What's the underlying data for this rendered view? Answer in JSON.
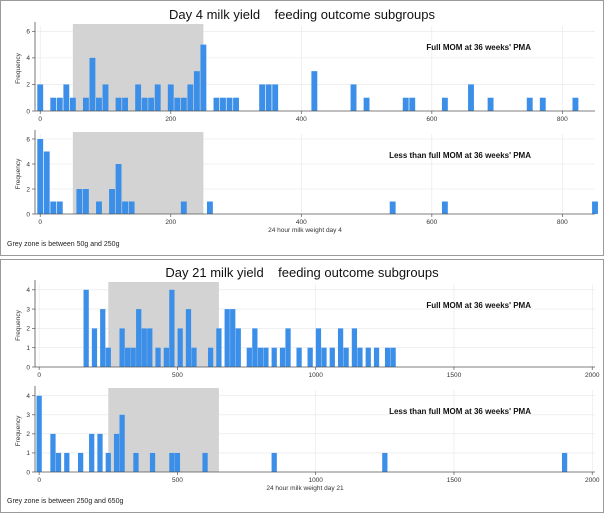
{
  "panels": [
    {
      "title": "Day 4 milk yield    feeding outcome subgroups",
      "note": "Grey zone is between 50g and 250g",
      "xlabel": "24  hour milk weight day 4"
    },
    {
      "title": "Day 21 milk yield    feeding outcome subgroups",
      "note": "Grey zone is between 250g and 650g",
      "xlabel": "24  hour milk weight day 21"
    }
  ],
  "colors": {
    "bar": "#3b8fe8",
    "grey_zone": "#d3d3d3",
    "axis": "#555555",
    "grid": "#e6e6e6"
  },
  "chart_data": [
    {
      "type": "bar",
      "title": "Full MOM at 36 weeks' PMA",
      "ylabel": "Frequency",
      "xlim": [
        -8,
        850
      ],
      "ylim": [
        0,
        6.4
      ],
      "xticks": [
        0,
        200,
        400,
        600,
        800
      ],
      "yticks": [
        0,
        2,
        4,
        6
      ],
      "bin_width": 9,
      "grey_zone": [
        50,
        250
      ],
      "bins": [
        [
          0,
          2
        ],
        [
          20,
          1
        ],
        [
          30,
          1
        ],
        [
          40,
          2
        ],
        [
          50,
          1
        ],
        [
          70,
          1
        ],
        [
          80,
          4
        ],
        [
          90,
          1
        ],
        [
          100,
          2
        ],
        [
          120,
          1
        ],
        [
          130,
          1
        ],
        [
          150,
          2
        ],
        [
          160,
          1
        ],
        [
          170,
          1
        ],
        [
          180,
          2
        ],
        [
          200,
          2
        ],
        [
          210,
          1
        ],
        [
          220,
          1
        ],
        [
          230,
          2
        ],
        [
          240,
          3
        ],
        [
          250,
          5
        ],
        [
          270,
          1
        ],
        [
          280,
          1
        ],
        [
          290,
          1
        ],
        [
          300,
          1
        ],
        [
          340,
          2
        ],
        [
          350,
          2
        ],
        [
          360,
          2
        ],
        [
          420,
          3
        ],
        [
          480,
          2
        ],
        [
          500,
          1
        ],
        [
          560,
          1
        ],
        [
          570,
          1
        ],
        [
          620,
          1
        ],
        [
          660,
          2
        ],
        [
          690,
          1
        ],
        [
          750,
          1
        ],
        [
          770,
          1
        ],
        [
          820,
          1
        ]
      ]
    },
    {
      "type": "bar",
      "title": "Less than full MOM at 36 weeks' PMA",
      "ylabel": "Frequency",
      "xlim": [
        -8,
        850
      ],
      "ylim": [
        0,
        6.4
      ],
      "xticks": [
        0,
        200,
        400,
        600,
        800
      ],
      "yticks": [
        0,
        2,
        4,
        6
      ],
      "bin_width": 9,
      "grey_zone": [
        50,
        250
      ],
      "bins": [
        [
          0,
          6
        ],
        [
          10,
          5
        ],
        [
          20,
          1
        ],
        [
          30,
          1
        ],
        [
          60,
          2
        ],
        [
          70,
          2
        ],
        [
          90,
          1
        ],
        [
          110,
          2
        ],
        [
          120,
          4
        ],
        [
          130,
          1
        ],
        [
          140,
          1
        ],
        [
          220,
          1
        ],
        [
          260,
          1
        ],
        [
          540,
          1
        ],
        [
          620,
          1
        ],
        [
          850,
          1
        ]
      ]
    },
    {
      "type": "bar",
      "title": "Full MOM at 36 weeks' PMA",
      "ylabel": "Frequency",
      "xlim": [
        -15,
        2010
      ],
      "ylim": [
        0,
        4.3
      ],
      "xticks": [
        0,
        500,
        1000,
        1500,
        2000
      ],
      "yticks": [
        0,
        1,
        2,
        3,
        4
      ],
      "bin_width": 19,
      "grey_zone": [
        250,
        650
      ],
      "bins": [
        [
          170,
          4
        ],
        [
          200,
          2
        ],
        [
          230,
          3
        ],
        [
          250,
          1
        ],
        [
          300,
          2
        ],
        [
          320,
          1
        ],
        [
          340,
          1
        ],
        [
          360,
          3
        ],
        [
          380,
          2
        ],
        [
          400,
          2
        ],
        [
          430,
          1
        ],
        [
          460,
          1
        ],
        [
          480,
          4
        ],
        [
          510,
          2
        ],
        [
          540,
          3
        ],
        [
          560,
          1
        ],
        [
          620,
          1
        ],
        [
          650,
          2
        ],
        [
          680,
          3
        ],
        [
          700,
          3
        ],
        [
          720,
          2
        ],
        [
          760,
          1
        ],
        [
          780,
          2
        ],
        [
          800,
          1
        ],
        [
          820,
          1
        ],
        [
          850,
          1
        ],
        [
          880,
          1
        ],
        [
          900,
          2
        ],
        [
          940,
          1
        ],
        [
          980,
          1
        ],
        [
          1010,
          2
        ],
        [
          1030,
          1
        ],
        [
          1060,
          1
        ],
        [
          1090,
          2
        ],
        [
          1110,
          1
        ],
        [
          1140,
          2
        ],
        [
          1160,
          1
        ],
        [
          1190,
          1
        ],
        [
          1220,
          1
        ],
        [
          1260,
          1
        ],
        [
          1280,
          1
        ]
      ]
    },
    {
      "type": "bar",
      "title": "Less than full MOM at 36 weeks' PMA",
      "ylabel": "Frequency",
      "xlim": [
        -15,
        2010
      ],
      "ylim": [
        0,
        4.3
      ],
      "xticks": [
        0,
        500,
        1000,
        1500,
        2000
      ],
      "yticks": [
        0,
        1,
        2,
        3,
        4
      ],
      "bin_width": 19,
      "grey_zone": [
        250,
        650
      ],
      "bins": [
        [
          0,
          4
        ],
        [
          50,
          2
        ],
        [
          70,
          1
        ],
        [
          100,
          1
        ],
        [
          150,
          1
        ],
        [
          190,
          2
        ],
        [
          220,
          2
        ],
        [
          250,
          1
        ],
        [
          280,
          2
        ],
        [
          300,
          3
        ],
        [
          350,
          1
        ],
        [
          410,
          1
        ],
        [
          480,
          1
        ],
        [
          500,
          1
        ],
        [
          600,
          1
        ],
        [
          850,
          1
        ],
        [
          1250,
          1
        ],
        [
          1900,
          1
        ]
      ]
    }
  ],
  "subgroup_labels": [
    "Full MOM at 36 weeks' PMA",
    "Less than full MOM at 36 weeks' PMA",
    "Full MOM at 36 weeks' PMA",
    "Less than full MOM at 36 weeks' PMA"
  ]
}
